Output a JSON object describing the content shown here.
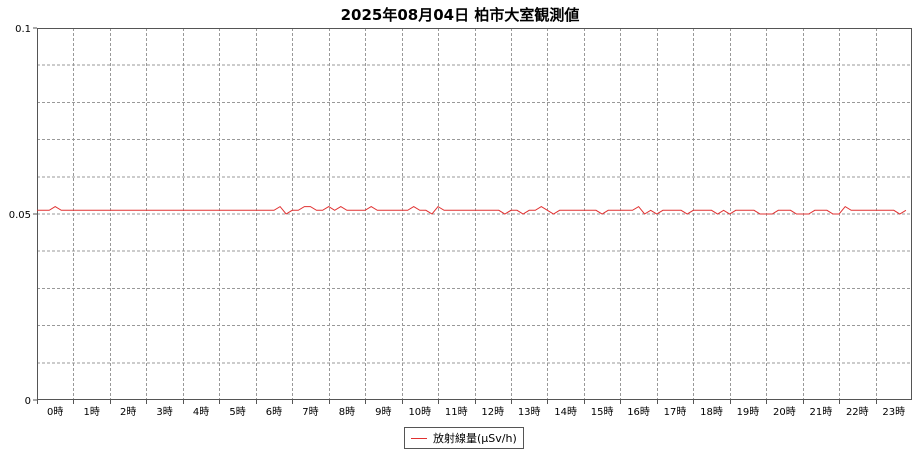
{
  "chart_data": {
    "type": "line",
    "title": "2025年08月04日 柏市大室観測値",
    "xlabel": "",
    "ylabel": "",
    "x_tick_labels": [
      "0時",
      "1時",
      "2時",
      "3時",
      "4時",
      "5時",
      "6時",
      "7時",
      "8時",
      "9時",
      "10時",
      "11時",
      "12時",
      "13時",
      "14時",
      "15時",
      "16時",
      "17時",
      "18時",
      "19時",
      "20時",
      "21時",
      "22時",
      "23時"
    ],
    "y_tick_labels": [
      "0",
      "0.05",
      "0.1"
    ],
    "ylim": [
      0,
      0.1
    ],
    "xlim_hours": [
      0,
      24
    ],
    "grid": true,
    "legend_position": "bottom-center",
    "series": [
      {
        "name": "放射線量(μSv/h)",
        "color": "#e03030",
        "interval_minutes": 10,
        "values": [
          0.051,
          0.051,
          0.051,
          0.052,
          0.051,
          0.051,
          0.051,
          0.051,
          0.051,
          0.051,
          0.051,
          0.051,
          0.051,
          0.051,
          0.051,
          0.051,
          0.051,
          0.051,
          0.051,
          0.051,
          0.051,
          0.051,
          0.051,
          0.051,
          0.051,
          0.051,
          0.051,
          0.051,
          0.051,
          0.051,
          0.051,
          0.051,
          0.051,
          0.051,
          0.051,
          0.051,
          0.051,
          0.051,
          0.051,
          0.051,
          0.052,
          0.05,
          0.051,
          0.051,
          0.052,
          0.052,
          0.051,
          0.051,
          0.052,
          0.051,
          0.052,
          0.051,
          0.051,
          0.051,
          0.051,
          0.052,
          0.051,
          0.051,
          0.051,
          0.051,
          0.051,
          0.051,
          0.052,
          0.051,
          0.051,
          0.05,
          0.052,
          0.051,
          0.051,
          0.051,
          0.051,
          0.051,
          0.051,
          0.051,
          0.051,
          0.051,
          0.051,
          0.05,
          0.051,
          0.051,
          0.05,
          0.051,
          0.051,
          0.052,
          0.051,
          0.05,
          0.051,
          0.051,
          0.051,
          0.051,
          0.051,
          0.051,
          0.051,
          0.05,
          0.051,
          0.051,
          0.051,
          0.051,
          0.051,
          0.052,
          0.05,
          0.051,
          0.05,
          0.051,
          0.051,
          0.051,
          0.051,
          0.05,
          0.051,
          0.051,
          0.051,
          0.051,
          0.05,
          0.051,
          0.05,
          0.051,
          0.051,
          0.051,
          0.051,
          0.05,
          0.05,
          0.05,
          0.051,
          0.051,
          0.051,
          0.05,
          0.05,
          0.05,
          0.051,
          0.051,
          0.051,
          0.05,
          0.05,
          0.052,
          0.051,
          0.051,
          0.051,
          0.051,
          0.051,
          0.051,
          0.051,
          0.051,
          0.05,
          0.051
        ]
      }
    ]
  },
  "legend": {
    "label": "放射線量(μSv/h)"
  }
}
